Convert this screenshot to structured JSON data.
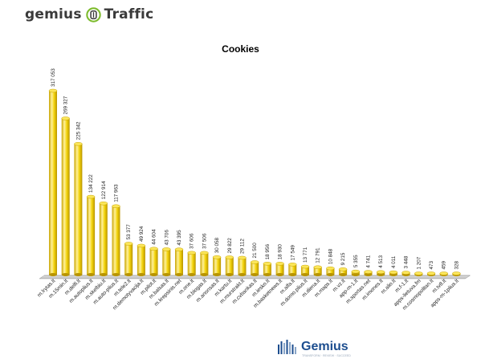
{
  "brand": {
    "left": "gemius",
    "right": "Traffic"
  },
  "footer": {
    "brand": "Gemius",
    "tagline": "TRANSFORM · REVIEW · SUCCEED"
  },
  "colors": {
    "bar": "#f2d40a",
    "bar_dark": "#c8a600",
    "bar_light": "#fff4a0",
    "brand_green": "#7dbb2d",
    "brand_gray": "#3a3a3a",
    "logo_blue": "#1d4e8f"
  },
  "chart_data": {
    "type": "bar",
    "title": "Cookies",
    "categories": [
      "m.lrytas.lt",
      "m.15min.lt",
      "m.delfi.lt",
      "m.autoplius.lt",
      "m.skelbiu.lt",
      "m.auto-plius.lt",
      "m.tele2.lt",
      "m.demotyvacija.lt",
      "m.pilot.lt",
      "m.balsas.lt",
      "m.krepsinis.net",
      "m.one.lt",
      "m.blogas.lt",
      "m.anonsas.lt",
      "m.kartu.lt",
      "m.murstrakt.lt",
      "m.cvbankas.lt",
      "m.iesko.lt",
      "m.basketnews.lt",
      "m.alfa.lt",
      "m.domo.plius.lt",
      "m.diena.lt",
      "m.maps.lt",
      "m.vz.lt",
      "app-m-1.lt",
      "m.sportas.net",
      "m.imones.lt",
      "m.alio.lt",
      "m.f-1.lt",
      "apps-lietuva.fm",
      "m.cosmopolitan.lt",
      "m.tv8.lt",
      "apps-m-1plius.lt"
    ],
    "values": [
      317053,
      269327,
      225342,
      134222,
      122914,
      117963,
      53377,
      49924,
      44604,
      43706,
      43395,
      37606,
      37506,
      30058,
      29822,
      29112,
      21500,
      18956,
      18930,
      17549,
      13771,
      12791,
      10848,
      9215,
      5355,
      4741,
      4513,
      4011,
      3448,
      1207,
      473,
      459,
      328
    ],
    "value_labels": [
      "317 053",
      "269 327",
      "225 342",
      "134 222",
      "122 914",
      "117 963",
      "53 377",
      "49 924",
      "44 604",
      "43 706",
      "43 395",
      "37 606",
      "37 506",
      "30 058",
      "29 822",
      "29 112",
      "21 500",
      "18 956",
      "18 930",
      "17 549",
      "13 771",
      "12 791",
      "10 848",
      "9 215",
      "5 355",
      "4 741",
      "4 513",
      "4 011",
      "3 448",
      "1 207",
      "473",
      "459",
      "328"
    ],
    "ylim": [
      0,
      317053
    ],
    "grid": false,
    "legend": "none"
  }
}
